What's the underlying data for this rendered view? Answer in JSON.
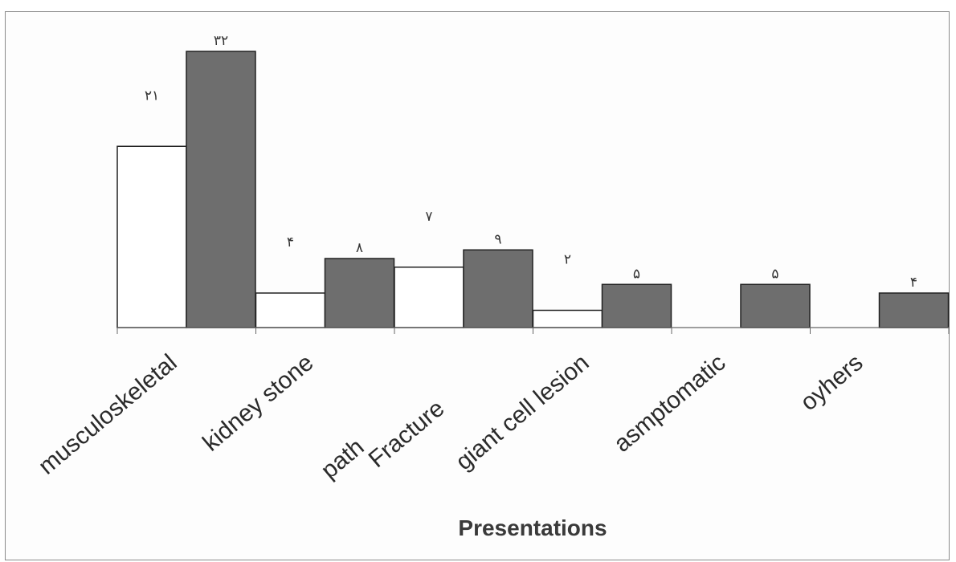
{
  "chart_data": {
    "type": "bar",
    "categories": [
      "musculoskeletal",
      "kidney stone",
      "path Fracture",
      "giant cell lesion",
      "asmptomatic",
      "oyhers"
    ],
    "category_labels": [
      "musculoskeletal",
      "kidney stone",
      "path",
      "Fracture",
      "giant cell lesion",
      "asmptomatic",
      "oyhers"
    ],
    "series": [
      {
        "fill": "#ffffff",
        "values": [
          21,
          4,
          7,
          2,
          0,
          0
        ],
        "labels": [
          "۲۱",
          "۴",
          "۷",
          "۲",
          "",
          ""
        ]
      },
      {
        "fill": "#6e6e6e",
        "values": [
          32,
          8,
          9,
          5,
          5,
          4
        ],
        "labels": [
          "۳۲",
          "۸",
          "۹",
          "۵",
          "۵",
          "۴"
        ]
      }
    ],
    "xlabel": "Presentations",
    "ylabel": "",
    "ylim": [
      0,
      32
    ],
    "grid": false,
    "legend": "none"
  }
}
